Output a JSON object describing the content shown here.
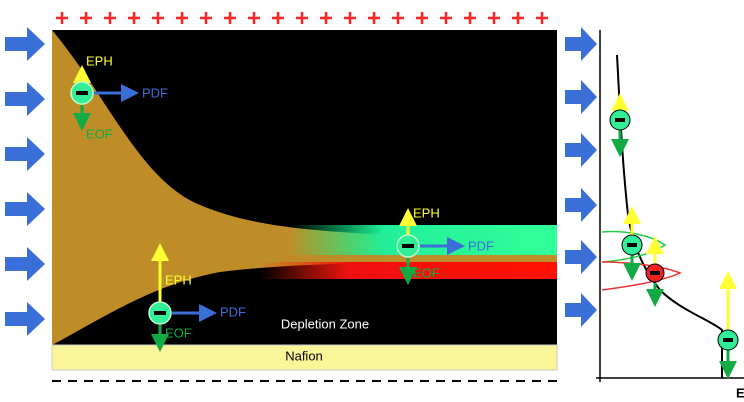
{
  "left_panel": {
    "particles": [
      {
        "eph": "EPH",
        "pdf": "PDF",
        "eof": "EOF"
      },
      {
        "eph": "EPH",
        "pdf": "PDF",
        "eof": "EOF"
      },
      {
        "eph": "EPH",
        "pdf": "PDF",
        "eof": "EOF"
      }
    ],
    "zone_label": "Depletion Zone",
    "membrane_label": "Nafion"
  },
  "right_panel": {
    "axis_label": "E"
  }
}
